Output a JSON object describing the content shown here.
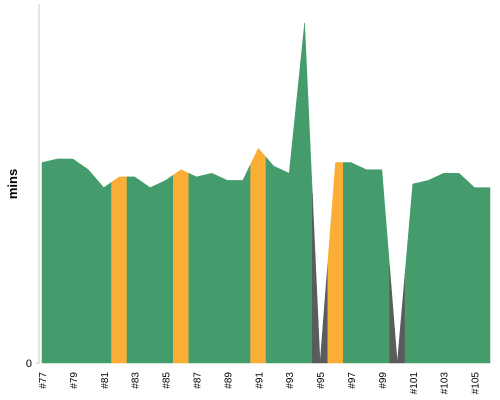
{
  "chart_data": {
    "type": "area",
    "ylabel": "mins",
    "categories": [
      "#77",
      null,
      "#79",
      null,
      "#81",
      null,
      "#83",
      null,
      "#85",
      null,
      "#87",
      null,
      "#89",
      null,
      "#91",
      null,
      "#93",
      null,
      "#95",
      null,
      "#97",
      null,
      "#99",
      null,
      "#101",
      null,
      "#103",
      null,
      "#105",
      null
    ],
    "values": [
      56,
      57,
      57,
      54,
      49,
      52,
      52,
      49,
      51,
      54,
      52,
      53,
      51,
      51,
      60,
      55,
      53,
      95,
      0,
      56,
      56,
      54,
      54,
      0,
      50,
      51,
      53,
      53,
      49,
      49
    ],
    "colors": [
      "#449c6c",
      "#449c6c",
      "#449c6c",
      "#449c6c",
      "#449c6c",
      "#fbae35",
      "#449c6c",
      "#449c6c",
      "#449c6c",
      "#fbae35",
      "#449c6c",
      "#449c6c",
      "#449c6c",
      "#449c6c",
      "#fbae35",
      "#449c6c",
      "#449c6c",
      "#449c6c",
      "#5b5b5b",
      "#fbae35",
      "#449c6c",
      "#449c6c",
      "#449c6c",
      "#5b5b5b",
      "#449c6c",
      "#449c6c",
      "#449c6c",
      "#449c6c",
      "#449c6c",
      "#449c6c"
    ],
    "ylim": [
      0,
      100
    ],
    "yticks": [
      0
    ]
  }
}
